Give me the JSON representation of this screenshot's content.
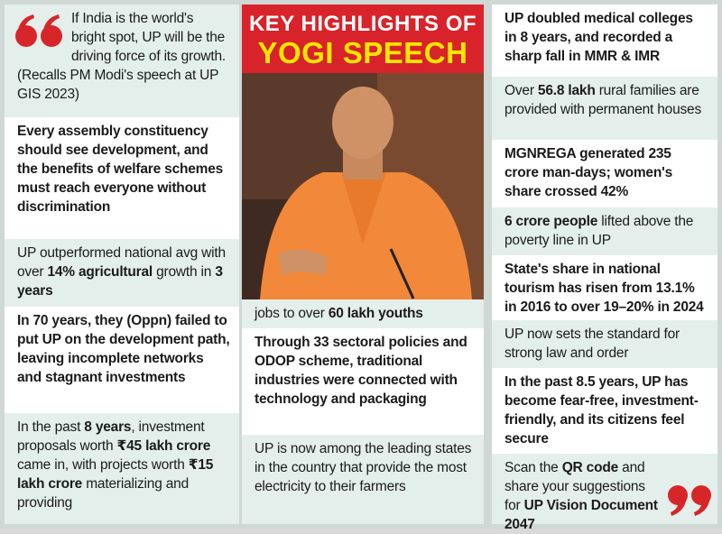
{
  "title": [
    "KEY HIGHLIGHTS OF",
    "YOGI SPEECH"
  ],
  "left": [
    [
      "If India is the world's bright spot, UP will be the driving force of its growth. (Recalls PM Modi's speech at UP GIS 2023)"
    ],
    [
      "Every assembly constituency should see development, and the benefits of welfare schemes must reach everyone without discrimination"
    ],
    [
      "UP outperformed national avg with over ",
      "14% agricultural",
      " growth in ",
      "3 years"
    ],
    [
      "In 70 years, they (Oppn) failed to put UP on the development path, leaving incomplete networks and stagnant investments"
    ],
    [
      "In the past ",
      "8 years",
      ", investment proposals worth ",
      "₹45 lakh crore",
      " came in, with projects worth ",
      "₹15 lakh crore",
      " materializing and providing"
    ]
  ],
  "middle": [
    [
      "jobs to over ",
      "60 lakh youths"
    ],
    [
      "Through 33 sectoral policies and ODOP scheme, traditional industries were connected with technology and packaging"
    ],
    [
      "UP is now among the leading states in the country that provide the most electricity to their farmers"
    ]
  ],
  "right": [
    [
      "UP doubled medical colleges in 8 years, and recorded a sharp fall in MMR & IMR"
    ],
    [
      "Over ",
      "56.8 lakh",
      " rural families are provided with permanent houses"
    ],
    [
      "MGNREGA generated 235 crore man-days; women's share crossed 42%"
    ],
    [
      "6 crore people",
      " lifted above the poverty line in UP"
    ],
    [
      "State's share in national tourism has risen from 13.1% in 2016 to over 19–20% in 2024"
    ],
    [
      "UP now sets the standard for strong law and order"
    ],
    [
      "In the past 8.5 years, UP has become fear-free, investment-friendly, and its citizens feel secure"
    ],
    [
      "Scan the ",
      "QR code",
      " and share your suggestions for ",
      "UP Vision Document 2047"
    ]
  ]
}
